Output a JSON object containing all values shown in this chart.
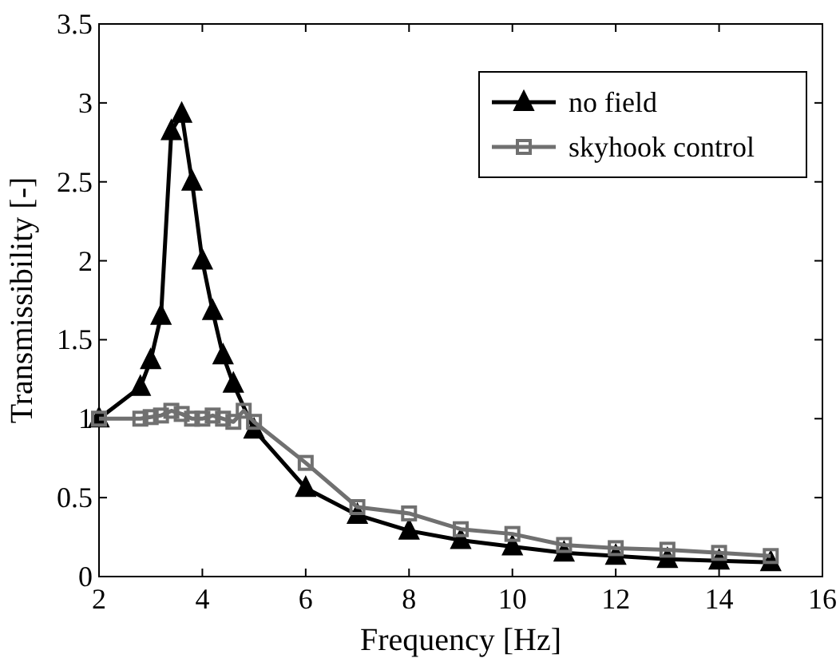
{
  "chart_data": {
    "type": "line",
    "xlabel": "Frequency [Hz]",
    "ylabel": "Transmissibility [-]",
    "xlim": [
      2,
      16
    ],
    "ylim": [
      0,
      3.5
    ],
    "xticks": [
      2,
      4,
      6,
      8,
      10,
      12,
      14,
      16
    ],
    "yticks": [
      0,
      0.5,
      1,
      1.5,
      2,
      2.5,
      3,
      3.5
    ],
    "legend": "top right",
    "grid": false,
    "series": [
      {
        "name": "no field",
        "color": "#000000",
        "marker": "triangle",
        "x": [
          2,
          2.8,
          3,
          3.2,
          3.4,
          3.6,
          3.8,
          4,
          4.2,
          4.4,
          4.6,
          5,
          6,
          7,
          8,
          9,
          10,
          11,
          12,
          13,
          14,
          15
        ],
        "values": [
          1,
          1.2,
          1.37,
          1.65,
          2.82,
          2.93,
          2.5,
          2,
          1.68,
          1.4,
          1.22,
          0.93,
          0.56,
          0.39,
          0.29,
          0.23,
          0.19,
          0.15,
          0.13,
          0.11,
          0.1,
          0.09
        ]
      },
      {
        "name": "skyhook control",
        "color": "#707070",
        "marker": "square",
        "x": [
          2,
          2.8,
          3,
          3.2,
          3.4,
          3.6,
          3.8,
          4,
          4.2,
          4.4,
          4.6,
          4.8,
          5,
          6,
          7,
          8,
          9,
          10,
          11,
          12,
          13,
          14,
          15
        ],
        "values": [
          1,
          1,
          1.01,
          1.02,
          1.05,
          1.03,
          1,
          1,
          1.02,
          1,
          0.98,
          1.05,
          0.98,
          0.72,
          0.44,
          0.4,
          0.3,
          0.27,
          0.2,
          0.18,
          0.17,
          0.15,
          0.13
        ]
      }
    ]
  }
}
